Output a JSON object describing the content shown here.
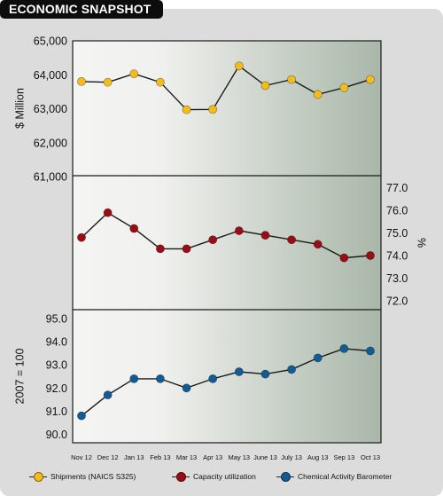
{
  "header": {
    "title": "ECONOMIC SNAPSHOT"
  },
  "colors": {
    "shipments": "#f3bb1c",
    "capacity": "#9b0d14",
    "cab": "#135b96",
    "panel_gradient_start": "#f4f4f2",
    "panel_gradient_end": "#a9b7a9",
    "header_bg": "#0d0d0d"
  },
  "chart_data": [
    {
      "type": "line",
      "series": [
        {
          "name": "Shipments (NAICS S325)",
          "values": [
            63800,
            63780,
            64030,
            63780,
            62970,
            62980,
            64260,
            63680,
            63860,
            63420,
            63620,
            63860
          ]
        }
      ],
      "categories": [
        "Nov 12",
        "Dec 12",
        "Jan 13",
        "Feb 13",
        "Mar 13",
        "Apr 13",
        "May 13",
        "June 13",
        "July 13",
        "Aug 13",
        "Sep 13",
        "Oct 13"
      ],
      "ylabel": "$ Million",
      "ylim": [
        61000,
        65000
      ],
      "yticks": [
        "61,000",
        "62,000",
        "63,000",
        "64,000",
        "65,000"
      ],
      "ytick_values": [
        61000,
        62000,
        63000,
        64000,
        65000
      ],
      "y_axis_side": "left"
    },
    {
      "type": "line",
      "series": [
        {
          "name": "Capacity utilization",
          "values": [
            74.8,
            75.9,
            75.2,
            74.3,
            74.3,
            74.7,
            75.1,
            74.9,
            74.7,
            74.5,
            73.9,
            74.0
          ]
        }
      ],
      "categories": [
        "Nov 12",
        "Dec 12",
        "Jan 13",
        "Feb 13",
        "Mar 13",
        "Apr 13",
        "May 13",
        "June 13",
        "July 13",
        "Aug 13",
        "Sep 13",
        "Oct 13"
      ],
      "ylabel": "%",
      "ylim": [
        71.5,
        77.5
      ],
      "yticks": [
        "72.0",
        "73.0",
        "74.0",
        "75.0",
        "76.0",
        "77.0"
      ],
      "ytick_values": [
        72,
        73,
        74,
        75,
        76,
        77
      ],
      "y_axis_side": "right"
    },
    {
      "type": "line",
      "series": [
        {
          "name": "Chemical Activity Barometer",
          "values": [
            90.8,
            91.7,
            92.4,
            92.4,
            92.0,
            92.4,
            92.7,
            92.6,
            92.8,
            93.3,
            93.7,
            93.6
          ]
        }
      ],
      "categories": [
        "Nov 12",
        "Dec 12",
        "Jan 13",
        "Feb 13",
        "Mar 13",
        "Apr 13",
        "May 13",
        "June 13",
        "July 13",
        "Aug 13",
        "Sep 13",
        "Oct 13"
      ],
      "ylabel": "2007 = 100",
      "ylim": [
        89.6,
        95.4
      ],
      "yticks": [
        "90.0",
        "91.0",
        "92.0",
        "93.0",
        "94.0",
        "95.0"
      ],
      "ytick_values": [
        90,
        91,
        92,
        93,
        94,
        95
      ],
      "y_axis_side": "left"
    }
  ],
  "legend": [
    {
      "label": "Shipments (NAICS S325)",
      "color": "#f3bb1c"
    },
    {
      "label": "Capacity utilization",
      "color": "#9b0d14"
    },
    {
      "label": "Chemical Activity Barometer",
      "color": "#135b96"
    }
  ]
}
